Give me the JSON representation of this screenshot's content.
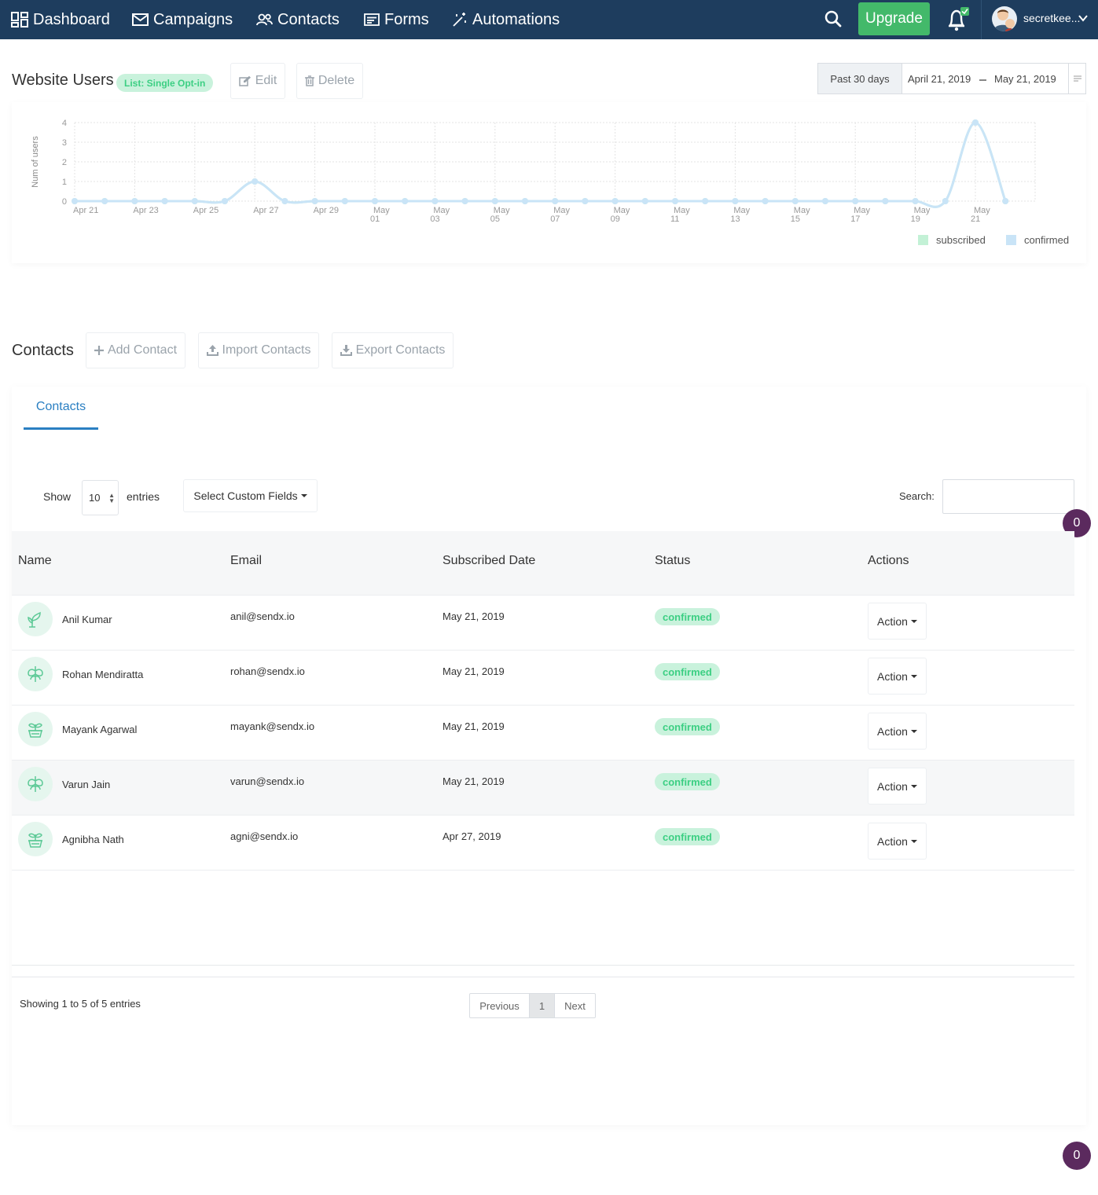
{
  "nav": {
    "items": [
      {
        "label": "Dashboard",
        "icon": "grid-icon"
      },
      {
        "label": "Campaigns",
        "icon": "envelope-icon"
      },
      {
        "label": "Contacts",
        "icon": "users-icon"
      },
      {
        "label": "Forms",
        "icon": "form-icon"
      },
      {
        "label": "Automations",
        "icon": "magic-wand-icon"
      }
    ],
    "upgrade_label": "Upgrade",
    "user_name": "secretkee..."
  },
  "list": {
    "title": "Website Users",
    "badge": "List: Single Opt-in",
    "edit_label": "Edit",
    "delete_label": "Delete"
  },
  "daterange": {
    "preset": "Past 30 days",
    "start": "April 21, 2019",
    "end": "May 21, 2019"
  },
  "chart_data": {
    "type": "line",
    "title": "",
    "xlabel": "",
    "ylabel": "Num of users",
    "ylim": [
      0,
      4
    ],
    "yticks": [
      "0",
      "1",
      "2",
      "3",
      "4"
    ],
    "x": [
      "Apr 21",
      "Apr 22",
      "Apr 23",
      "Apr 24",
      "Apr 25",
      "Apr 26",
      "Apr 27",
      "Apr 28",
      "Apr 29",
      "Apr 30",
      "May 01",
      "May 02",
      "May 03",
      "May 04",
      "May 05",
      "May 06",
      "May 07",
      "May 08",
      "May 09",
      "May 10",
      "May 11",
      "May 12",
      "May 13",
      "May 14",
      "May 15",
      "May 16",
      "May 17",
      "May 18",
      "May 19",
      "May 20",
      "May 21",
      "May 22"
    ],
    "xtick_labels": [
      [
        "Apr 21"
      ],
      [
        "Apr 23"
      ],
      [
        "Apr 25"
      ],
      [
        "Apr 27"
      ],
      [
        "Apr 29"
      ],
      [
        "May",
        "01"
      ],
      [
        "May",
        "03"
      ],
      [
        "May",
        "05"
      ],
      [
        "May",
        "07"
      ],
      [
        "May",
        "09"
      ],
      [
        "May",
        "11"
      ],
      [
        "May",
        "13"
      ],
      [
        "May",
        "15"
      ],
      [
        "May",
        "17"
      ],
      [
        "May",
        "19"
      ],
      [
        "May",
        "21"
      ]
    ],
    "series": [
      {
        "name": "subscribed",
        "color": "#c3f1d6",
        "values": [
          0,
          0,
          0,
          0,
          0,
          0,
          1,
          0,
          0,
          0,
          0,
          0,
          0,
          0,
          0,
          0,
          0,
          0,
          0,
          0,
          0,
          0,
          0,
          0,
          0,
          0,
          0,
          0,
          0,
          0,
          4,
          0
        ]
      },
      {
        "name": "confirmed",
        "color": "#c9e4f7",
        "values": [
          0,
          0,
          0,
          0,
          0,
          0,
          1,
          0,
          0,
          0,
          0,
          0,
          0,
          0,
          0,
          0,
          0,
          0,
          0,
          0,
          0,
          0,
          0,
          0,
          0,
          0,
          0,
          0,
          0,
          0,
          4,
          0
        ]
      }
    ],
    "grid": true,
    "legend": "bottom-right"
  },
  "contacts_section": {
    "title": "Contacts",
    "add_label": "Add Contact",
    "import_label": "Import Contacts",
    "export_label": "Export Contacts",
    "tab_label": "Contacts"
  },
  "table_controls": {
    "show_label": "Show",
    "page_size": "10",
    "entries_label": "entries",
    "custom_fields_label": "Select Custom Fields",
    "search_label": "Search:",
    "search_value": "",
    "bubble_count": "0"
  },
  "table": {
    "headers": [
      "Name",
      "Email",
      "Subscribed Date",
      "Status",
      "Actions"
    ],
    "rows": [
      {
        "name": "Anil Kumar",
        "email": "anil@sendx.io",
        "date": "May 21, 2019",
        "status": "confirmed",
        "action": "Action"
      },
      {
        "name": "Rohan Mendiratta",
        "email": "rohan@sendx.io",
        "date": "May 21, 2019",
        "status": "confirmed",
        "action": "Action"
      },
      {
        "name": "Mayank Agarwal",
        "email": "mayank@sendx.io",
        "date": "May 21, 2019",
        "status": "confirmed",
        "action": "Action"
      },
      {
        "name": "Varun Jain",
        "email": "varun@sendx.io",
        "date": "May 21, 2019",
        "status": "confirmed",
        "action": "Action"
      },
      {
        "name": "Agnibha Nath",
        "email": "agni@sendx.io",
        "date": "Apr 27, 2019",
        "status": "confirmed",
        "action": "Action"
      }
    ]
  },
  "pagination": {
    "summary": "Showing 1 to 5 of 5 entries",
    "prev_label": "Previous",
    "page": "1",
    "next_label": "Next"
  },
  "bottom_bubble_count": "0"
}
